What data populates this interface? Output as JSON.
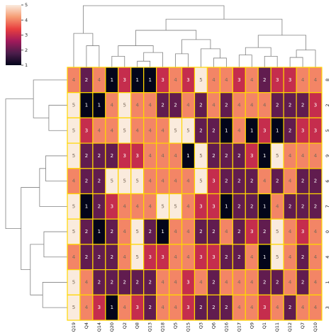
{
  "chart_data": {
    "type": "heatmap",
    "title": "",
    "xlabel": "",
    "ylabel": "",
    "columns": [
      "Q19",
      "Q4",
      "Q14",
      "Q20",
      "Q2",
      "Q8",
      "Q13",
      "Q18",
      "Q5",
      "Q15",
      "Q3",
      "Q6",
      "Q16",
      "Q17",
      "Q9",
      "Q1",
      "Q11",
      "Q12",
      "Q7",
      "Q10"
    ],
    "rows": [
      "8",
      "2",
      "5",
      "9",
      "6",
      "7",
      "0",
      "4",
      "1",
      "3"
    ],
    "values": [
      [
        4,
        2,
        4,
        1,
        3,
        1,
        1,
        3,
        4,
        3,
        5,
        4,
        4,
        3,
        4,
        2,
        3,
        3,
        4,
        4
      ],
      [
        5,
        1,
        1,
        4,
        5,
        4,
        4,
        2,
        2,
        4,
        2,
        4,
        2,
        4,
        4,
        4,
        2,
        2,
        2,
        3
      ],
      [
        5,
        3,
        4,
        4,
        5,
        4,
        4,
        4,
        5,
        5,
        2,
        2,
        1,
        4,
        1,
        3,
        1,
        2,
        3,
        3
      ],
      [
        5,
        2,
        2,
        2,
        3,
        3,
        4,
        4,
        4,
        1,
        5,
        2,
        2,
        2,
        3,
        1,
        5,
        4,
        4,
        4
      ],
      [
        4,
        2,
        2,
        5,
        5,
        5,
        4,
        4,
        4,
        4,
        5,
        3,
        2,
        2,
        2,
        4,
        2,
        4,
        2,
        2
      ],
      [
        5,
        1,
        2,
        3,
        4,
        4,
        4,
        5,
        5,
        4,
        3,
        3,
        1,
        2,
        2,
        1,
        4,
        2,
        2,
        2
      ],
      [
        5,
        2,
        1,
        2,
        4,
        5,
        2,
        1,
        4,
        4,
        2,
        2,
        4,
        2,
        3,
        2,
        5,
        4,
        3,
        4
      ],
      [
        4,
        2,
        2,
        2,
        4,
        5,
        3,
        3,
        4,
        4,
        3,
        3,
        2,
        2,
        4,
        1,
        5,
        4,
        2,
        4
      ],
      [
        5,
        4,
        2,
        2,
        2,
        2,
        2,
        4,
        4,
        3,
        4,
        2,
        4,
        4,
        4,
        2,
        2,
        4,
        2,
        4
      ],
      [
        5,
        4,
        3,
        1,
        4,
        3,
        2,
        4,
        4,
        3,
        2,
        2,
        2,
        4,
        4,
        3,
        4,
        2,
        4,
        4
      ]
    ],
    "colorbar": {
      "min": 1,
      "max": 5,
      "ticks": [
        "1",
        "2",
        "3",
        "4",
        "5"
      ],
      "colors": [
        "#03051a",
        "#4c1d4b",
        "#a11a5b",
        "#e83f3f",
        "#f69c73",
        "#faebdd"
      ]
    },
    "grid": {
      "cell_border_color": "#ffd700"
    },
    "dendrogram_color": "#808080"
  }
}
